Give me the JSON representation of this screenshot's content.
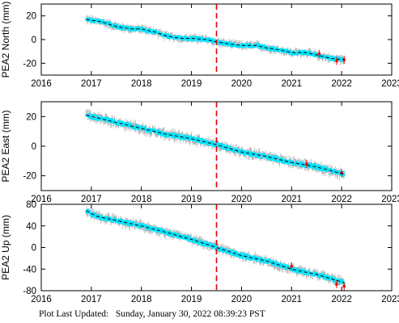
{
  "footer": {
    "label": "Plot Last Updated:",
    "timestamp": "Sunday, January 30, 2022 08:39:23 PST"
  },
  "colors": {
    "data_points": "#00e5ff",
    "error_bars": "#b4b4b4",
    "trend_line": "#000000",
    "recent_points": "#ff0000",
    "event_marker": "#e00000"
  },
  "chart_data": [
    {
      "type": "scatter",
      "ylabel": "PEA2 North (mm)",
      "xlabel": "",
      "xlim": [
        2016,
        2023
      ],
      "ylim": [
        -30,
        30
      ],
      "xticks": [
        2016,
        2017,
        2018,
        2019,
        2020,
        2021,
        2022,
        2023
      ],
      "yticks": [
        -20,
        0,
        20
      ],
      "event_x": 2019.5,
      "grid": false,
      "trend": {
        "x": [
          2016.9,
          2017.2,
          2017.5,
          2017.8,
          2018.0,
          2018.3,
          2018.5,
          2018.8,
          2019.0,
          2019.3,
          2019.5,
          2019.8,
          2020.0,
          2020.3,
          2020.5,
          2020.8,
          2021.0,
          2021.3,
          2021.5,
          2021.8,
          2022.05
        ],
        "y": [
          17,
          15,
          11,
          9,
          9,
          6,
          3,
          1,
          1,
          0,
          -2,
          -4,
          -5,
          -5,
          -7,
          -9,
          -11,
          -11,
          -13,
          -16,
          -17
        ]
      },
      "recent": {
        "x": [
          2021.55,
          2021.9,
          2022.05
        ],
        "y": [
          -12,
          -18,
          -17
        ]
      }
    },
    {
      "type": "scatter",
      "ylabel": "PEA2 East (mm)",
      "xlabel": "",
      "xlim": [
        2016,
        2023
      ],
      "ylim": [
        -30,
        30
      ],
      "xticks": [
        2016,
        2017,
        2018,
        2019,
        2020,
        2021,
        2022,
        2023
      ],
      "yticks": [
        -20,
        0,
        20
      ],
      "event_x": 2019.5,
      "grid": false,
      "trend": {
        "x": [
          2016.9,
          2017.5,
          2018.0,
          2018.5,
          2019.0,
          2019.5,
          2020.0,
          2020.5,
          2021.0,
          2021.5,
          2022.05
        ],
        "y": [
          21,
          16,
          12,
          8,
          5,
          1,
          -4,
          -7,
          -11,
          -14,
          -19
        ]
      },
      "recent": {
        "x": [
          2021.3,
          2022.0
        ],
        "y": [
          -12,
          -18
        ]
      }
    },
    {
      "type": "scatter",
      "ylabel": "PEA2 Up (mm)",
      "xlabel": "",
      "xlim": [
        2016,
        2023
      ],
      "ylim": [
        -80,
        80
      ],
      "xticks": [
        2016,
        2017,
        2018,
        2019,
        2020,
        2021,
        2022,
        2023
      ],
      "yticks": [
        -80,
        -40,
        0,
        40,
        80
      ],
      "event_x": 2019.5,
      "grid": false,
      "trend": {
        "x": [
          2016.9,
          2017.1,
          2017.5,
          2018.0,
          2018.5,
          2019.0,
          2019.5,
          2020.0,
          2020.5,
          2021.0,
          2021.5,
          2022.05
        ],
        "y": [
          68,
          58,
          50,
          40,
          28,
          15,
          0,
          -15,
          -25,
          -40,
          -50,
          -65
        ]
      },
      "recent": {
        "x": [
          2021.0,
          2021.9,
          2022.05
        ],
        "y": [
          -35,
          -68,
          -72
        ]
      }
    }
  ]
}
